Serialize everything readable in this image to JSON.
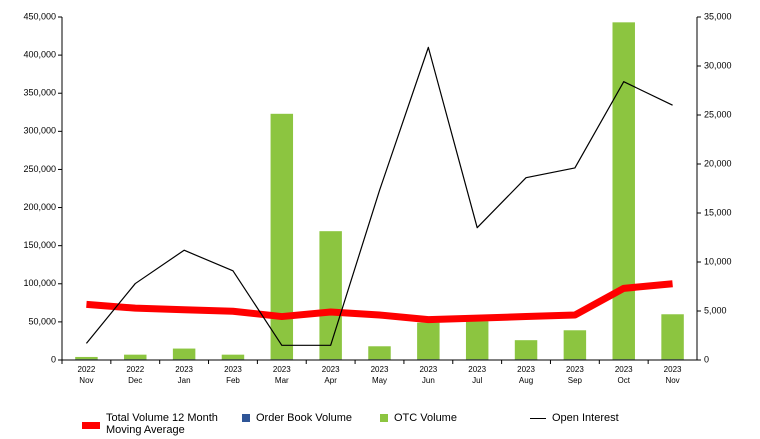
{
  "chart_data": {
    "type": "bar",
    "categories": [
      "Nov",
      "Dec",
      "Jan",
      "Feb",
      "Mar",
      "Apr",
      "May",
      "Jun",
      "Jul",
      "Aug",
      "Sep",
      "Oct",
      "Nov"
    ],
    "category_years": [
      "2022",
      "2022",
      "2023",
      "2023",
      "2023",
      "2023",
      "2023",
      "2023",
      "2023",
      "2023",
      "2023",
      "2023",
      "2023"
    ],
    "series": [
      {
        "name": "Total Volume 12 Month Moving Average",
        "type": "line",
        "color": "#ff0000",
        "axis": "y",
        "values": [
          73000,
          68000,
          66000,
          64000,
          57000,
          63000,
          59000,
          53000,
          55000,
          57000,
          59000,
          94000,
          100000
        ]
      },
      {
        "name": "Order Book Volume",
        "type": "bar",
        "color": "#2f5597",
        "axis": "y",
        "values": [
          1000,
          1000,
          1000,
          1000,
          1000,
          1000,
          1000,
          1000,
          1000,
          1000,
          1000,
          1000,
          1000
        ]
      },
      {
        "name": "OTC Volume",
        "type": "bar",
        "color": "#8cc540",
        "axis": "y",
        "values": [
          3000,
          6000,
          14000,
          6000,
          322000,
          168000,
          17000,
          48000,
          50000,
          25000,
          38000,
          442000,
          59000
        ]
      },
      {
        "name": "Open Interest",
        "type": "line",
        "color": "#000000",
        "axis": "y2",
        "values": [
          1700,
          7800,
          11200,
          9100,
          1500,
          1500,
          17300,
          31900,
          13500,
          18600,
          19600,
          28400,
          26000
        ]
      }
    ],
    "ylim": [
      0,
      450000
    ],
    "yticks": [
      0,
      {
        "value": 50000,
        "label": "50,000"
      },
      {
        "value": 100000,
        "label": "100,000"
      },
      {
        "value": 150000,
        "label": "150,000"
      },
      {
        "value": 200000,
        "label": "200,000"
      },
      {
        "value": 250000,
        "label": "250,000"
      },
      {
        "value": 300000,
        "label": "300,000"
      },
      {
        "value": 350000,
        "label": "350,000"
      },
      {
        "value": 400000,
        "label": "400,000"
      },
      {
        "value": 450000,
        "label": "450,000"
      }
    ],
    "y2lim": [
      0,
      35000
    ],
    "y2ticks": [
      0,
      {
        "value": 5000,
        "label": "5,000"
      },
      {
        "value": 10000,
        "label": "10,000"
      },
      {
        "value": 15000,
        "label": "15,000"
      },
      {
        "value": 20000,
        "label": "20,000"
      },
      {
        "value": 25000,
        "label": "25,000"
      },
      {
        "value": 30000,
        "label": "30,000"
      },
      {
        "value": 35000,
        "label": "35,000"
      }
    ],
    "grid": false,
    "legend": "bottom"
  }
}
